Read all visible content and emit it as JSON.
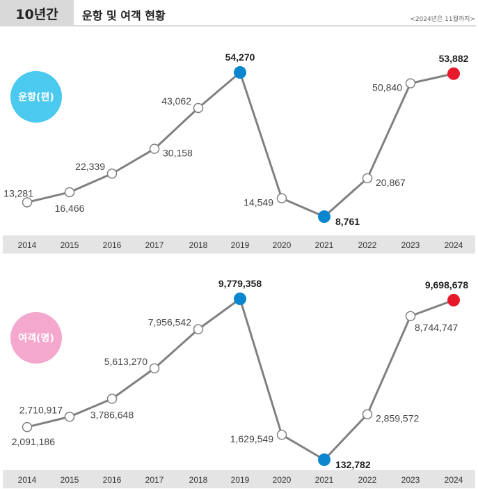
{
  "header": {
    "tab": "10년간",
    "title": "운항 및 여객 현황",
    "note": "<2024년은 11월까지>"
  },
  "chart_data": [
    {
      "type": "line",
      "badge": "운항(편)",
      "badge_color": "#4cc9ee",
      "x": [
        "2014",
        "2015",
        "2016",
        "2017",
        "2018",
        "2019",
        "2020",
        "2021",
        "2022",
        "2023",
        "2024"
      ],
      "values": [
        13281,
        16466,
        22339,
        30158,
        43062,
        54270,
        14549,
        8761,
        20867,
        50840,
        53882
      ],
      "labels": [
        "13,281",
        "16,466",
        "22,339",
        "30,158",
        "43,062",
        "54,270",
        "14,549",
        "8,761",
        "20,867",
        "50,840",
        "53,882"
      ],
      "ylim": [
        8000,
        56000
      ],
      "highlight": {
        "max": "2019",
        "min": "2021",
        "latest": "2024"
      },
      "colors": {
        "line": "#808080",
        "max_min": "#0a86cf",
        "latest": "#e8182c",
        "axis_band": "#e4e4e4"
      }
    },
    {
      "type": "line",
      "badge": "여객(명)",
      "badge_color": "#f5a8cd",
      "x": [
        "2014",
        "2015",
        "2016",
        "2017",
        "2018",
        "2019",
        "2020",
        "2021",
        "2022",
        "2023",
        "2024"
      ],
      "values": [
        2091186,
        2710917,
        3786648,
        5613270,
        7956542,
        9779358,
        1629549,
        132782,
        2859572,
        8744747,
        9698678
      ],
      "labels": [
        "2,091,186",
        "2,710,917",
        "3,786,648",
        "5,613,270",
        "7,956,542",
        "9,779,358",
        "1,629,549",
        "132,782",
        "2,859,572",
        "8,744,747",
        "9,698,678"
      ],
      "ylim": [
        0,
        10000000
      ],
      "highlight": {
        "max": "2019",
        "min": "2021",
        "latest": "2024"
      },
      "colors": {
        "line": "#808080",
        "max_min": "#0a86cf",
        "latest": "#e8182c",
        "axis_band": "#e4e4e4"
      }
    }
  ]
}
